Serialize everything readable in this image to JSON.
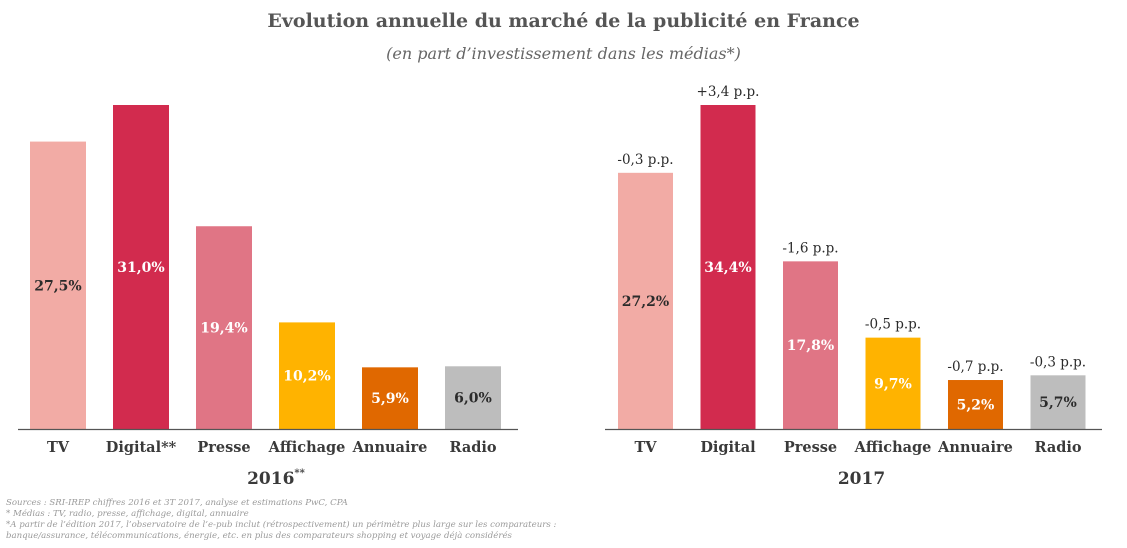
{
  "header": {
    "title": "Evolution annuelle du marché de la publicité en France",
    "subtitle": "(en part d’investissement dans les médias*)"
  },
  "colors": {
    "tv": "#f2aba5",
    "digital": "#d22b4e",
    "presse": "#e07585",
    "affichage": "#ffb300",
    "annuaire": "#e06800",
    "radio": "#bdbdbd",
    "axis": "#555555"
  },
  "chart_data": [
    {
      "type": "bar",
      "title": "2016",
      "title_superscript": "**",
      "categories": [
        "TV",
        "Digital**",
        "Presse",
        "Affichage",
        "Annuaire",
        "Radio"
      ],
      "values": [
        27.5,
        31.0,
        19.4,
        10.2,
        5.9,
        6.0
      ],
      "value_labels": [
        "27,5%",
        "31,0%",
        "19,4%",
        "10,2%",
        "5,9%",
        "6,0%"
      ],
      "change_labels": [
        "",
        "",
        "",
        "",
        "",
        ""
      ],
      "color_keys": [
        "tv",
        "digital",
        "presse",
        "affichage",
        "annuaire",
        "radio"
      ],
      "label_colors": [
        "#2b2b2b",
        "#ffffff",
        "#ffffff",
        "#ffffff",
        "#ffffff",
        "#2b2b2b"
      ],
      "ylim": [
        0,
        31.0
      ]
    },
    {
      "type": "bar",
      "title": "2017",
      "title_superscript": "",
      "categories": [
        "TV",
        "Digital",
        "Presse",
        "Affichage",
        "Annuaire",
        "Radio"
      ],
      "values": [
        27.2,
        34.4,
        17.8,
        9.7,
        5.2,
        5.7
      ],
      "value_labels": [
        "27,2%",
        "34,4%",
        "17,8%",
        "9,7%",
        "5,2%",
        "5,7%"
      ],
      "change_labels": [
        "-0,3 p.p.",
        "+3,4 p.p.",
        "-1,6 p.p.",
        "-0,5 p.p.",
        "-0,7 p.p.",
        "-0,3 p.p."
      ],
      "color_keys": [
        "tv",
        "digital",
        "presse",
        "affichage",
        "annuaire",
        "radio"
      ],
      "label_colors": [
        "#2b2b2b",
        "#ffffff",
        "#ffffff",
        "#ffffff",
        "#ffffff",
        "#2b2b2b"
      ],
      "ylim": [
        0,
        34.4
      ]
    }
  ],
  "footnotes": [
    "Sources : SRI-IREP chiffres 2016 et 3T 2017, analyse et estimations PwC, CPA",
    "* Médias : TV, radio, presse, affichage, digital, annuaire",
    "*A partir de l’édition 2017, l’observatoire de l’e-pub inclut (rétrospectivement) un périmètre plus large sur les comparateurs :",
    "banque/assurance, télécommunications, énergie, etc. en plus des comparateurs shopping et voyage déjà considérés"
  ]
}
